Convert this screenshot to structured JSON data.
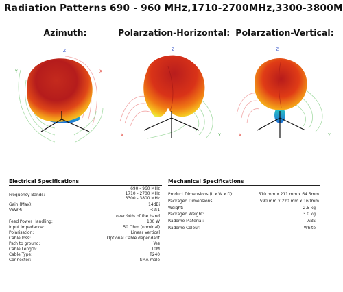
{
  "title": "Radiation Patterns  690 - 960 MHz,1710-2700MHz,3300-3800MHz",
  "plots": [
    {
      "title": "Azimuth:"
    },
    {
      "title": "Polarzation-Horizontal:"
    },
    {
      "title": "Polarzation-Vertical:"
    }
  ],
  "axes": {
    "x": "X",
    "y": "Y",
    "z": "Z"
  },
  "electrical": {
    "title": "Electrical Specifications",
    "freq_label": "Frequency Bands:",
    "freq_values": [
      "690 - 960 MHz",
      "1710 - 2700 MHz",
      "3300 - 3800 MHz"
    ],
    "rows": [
      {
        "label": "Gain (Max):",
        "value": "14dBi"
      },
      {
        "label": "VSWR:",
        "value": "<2:1"
      },
      {
        "label": "",
        "value": "over 90% of the band"
      },
      {
        "label": "Feed Power Handling:",
        "value": "100 W"
      },
      {
        "label": "Input impedance:",
        "value": "50 Ohm (nominal)"
      },
      {
        "label": "Polarisation:",
        "value": "Linear Vertical"
      },
      {
        "label": "Cable loss:",
        "value": "Optional Cable dependant"
      },
      {
        "label": "Path to ground:",
        "value": "Yes"
      },
      {
        "label": "Cable Length:",
        "value": "10M"
      },
      {
        "label": "Cable Type:",
        "value": "T240"
      },
      {
        "label": "Connector:",
        "value": "SMA male"
      }
    ]
  },
  "mechanical": {
    "title": "Mechanical Specifications",
    "rows": [
      {
        "label": "Product Dimensions (L x W x D):",
        "value": "510 mm x 211 mm x 64.5mm"
      },
      {
        "label": "Packaged Dimensions:",
        "value": "590 mm x 220 mm x  160mm"
      },
      {
        "label": "Weight:",
        "value": "2.5 kg"
      },
      {
        "label": "Packaged Weight:",
        "value": "3.0 kg"
      },
      {
        "label": "Radome Material:",
        "value": "ABS"
      },
      {
        "label": "Radome Colour:",
        "value": "White"
      }
    ]
  },
  "colors": {
    "axis_x": "#e03a2f",
    "axis_y": "#2e9a2e",
    "axis_z": "#2f4fc8",
    "lobe_dark": "#b31b1b",
    "lobe_mid": "#f06a10",
    "lobe_light": "#f7d21a",
    "lobe_cool": "#2b8fe0",
    "grid_red": "#f2a0a0",
    "grid_green": "#a6dca6"
  }
}
